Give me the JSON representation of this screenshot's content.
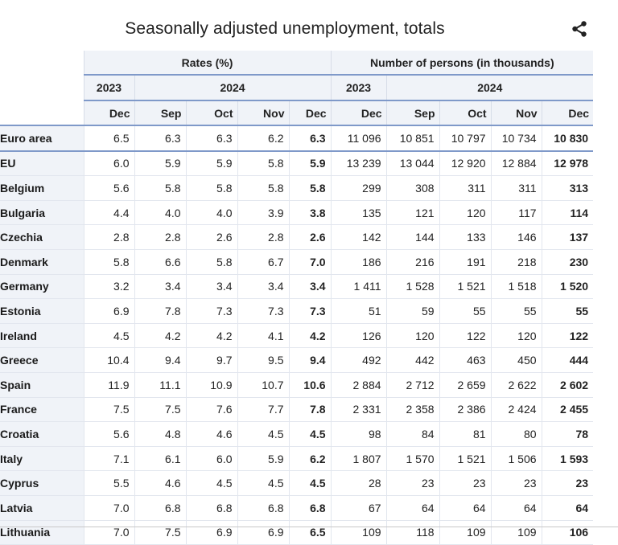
{
  "title": "Seasonally adjusted unemployment, totals",
  "icons": {
    "share": "share-icon"
  },
  "header": {
    "groups": [
      "Rates (%)",
      "Number of persons (in thousands)"
    ],
    "years": [
      "2023",
      "2024",
      "2023",
      "2024"
    ],
    "months": [
      "Dec",
      "Sep",
      "Oct",
      "Nov",
      "Dec",
      "Dec",
      "Sep",
      "Oct",
      "Nov",
      "Dec"
    ]
  },
  "rows": [
    {
      "country": "Euro area",
      "cells": [
        "6.5",
        "6.3",
        "6.3",
        "6.2",
        "6.3",
        "11 096",
        "10 851",
        "10 797",
        "10 734",
        "10 830"
      ]
    },
    {
      "country": "EU",
      "cells": [
        "6.0",
        "5.9",
        "5.9",
        "5.8",
        "5.9",
        "13 239",
        "13 044",
        "12 920",
        "12 884",
        "12 978"
      ]
    },
    {
      "country": "Belgium",
      "cells": [
        "5.6",
        "5.8",
        "5.8",
        "5.8",
        "5.8",
        "299",
        "308",
        "311",
        "311",
        "313"
      ]
    },
    {
      "country": "Bulgaria",
      "cells": [
        "4.4",
        "4.0",
        "4.0",
        "3.9",
        "3.8",
        "135",
        "121",
        "120",
        "117",
        "114"
      ]
    },
    {
      "country": "Czechia",
      "cells": [
        "2.8",
        "2.8",
        "2.6",
        "2.8",
        "2.6",
        "142",
        "144",
        "133",
        "146",
        "137"
      ]
    },
    {
      "country": "Denmark",
      "cells": [
        "5.8",
        "6.6",
        "5.8",
        "6.7",
        "7.0",
        "186",
        "216",
        "191",
        "218",
        "230"
      ]
    },
    {
      "country": "Germany",
      "cells": [
        "3.2",
        "3.4",
        "3.4",
        "3.4",
        "3.4",
        "1 411",
        "1 528",
        "1 521",
        "1 518",
        "1 520"
      ]
    },
    {
      "country": "Estonia",
      "cells": [
        "6.9",
        "7.8",
        "7.3",
        "7.3",
        "7.3",
        "51",
        "59",
        "55",
        "55",
        "55"
      ]
    },
    {
      "country": "Ireland",
      "cells": [
        "4.5",
        "4.2",
        "4.2",
        "4.1",
        "4.2",
        "126",
        "120",
        "122",
        "120",
        "122"
      ]
    },
    {
      "country": "Greece",
      "cells": [
        "10.4",
        "9.4",
        "9.7",
        "9.5",
        "9.4",
        "492",
        "442",
        "463",
        "450",
        "444"
      ]
    },
    {
      "country": "Spain",
      "cells": [
        "11.9",
        "11.1",
        "10.9",
        "10.7",
        "10.6",
        "2 884",
        "2 712",
        "2 659",
        "2 622",
        "2 602"
      ]
    },
    {
      "country": "France",
      "cells": [
        "7.5",
        "7.5",
        "7.6",
        "7.7",
        "7.8",
        "2 331",
        "2 358",
        "2 386",
        "2 424",
        "2 455"
      ]
    },
    {
      "country": "Croatia",
      "cells": [
        "5.6",
        "4.8",
        "4.6",
        "4.5",
        "4.5",
        "98",
        "84",
        "81",
        "80",
        "78"
      ]
    },
    {
      "country": "Italy",
      "cells": [
        "7.1",
        "6.1",
        "6.0",
        "5.9",
        "6.2",
        "1 807",
        "1 570",
        "1 521",
        "1 506",
        "1 593"
      ]
    },
    {
      "country": "Cyprus",
      "cells": [
        "5.5",
        "4.6",
        "4.5",
        "4.5",
        "4.5",
        "28",
        "23",
        "23",
        "23",
        "23"
      ]
    },
    {
      "country": "Latvia",
      "cells": [
        "7.0",
        "6.8",
        "6.8",
        "6.8",
        "6.8",
        "67",
        "64",
        "64",
        "64",
        "64"
      ]
    },
    {
      "country": "Lithuania",
      "cells": [
        "7.0",
        "7.5",
        "6.9",
        "6.9",
        "6.5",
        "109",
        "118",
        "109",
        "109",
        "106"
      ]
    }
  ]
}
